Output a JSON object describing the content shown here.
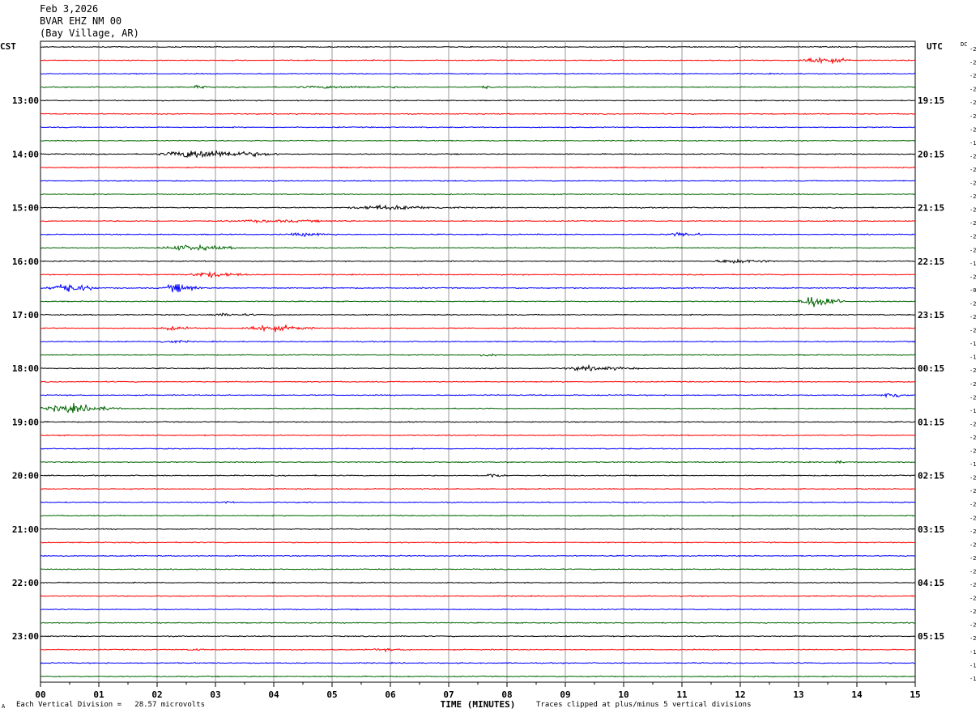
{
  "header": {
    "date": "Feb 3,2026",
    "station": "BVAR EHZ NM 00",
    "location": "(Bay Village, AR)"
  },
  "left_tz": "CST",
  "right_tz": "UTC",
  "dc_label": "DC",
  "footer": {
    "scale": "Each Vertical Division =   28.57 microvolts",
    "scale_mark": "A",
    "clip_note": "Traces clipped at plus/minus 5 vertical divisions"
  },
  "colors": {
    "trace_cycle": [
      "#000000",
      "#ff0000",
      "#0000ff",
      "#006400"
    ],
    "grid": "#999999"
  },
  "chart_data": {
    "type": "line",
    "xlabel": "TIME (MINUTES)",
    "xticks": [
      "00",
      "01",
      "02",
      "03",
      "04",
      "05",
      "06",
      "07",
      "08",
      "09",
      "10",
      "11",
      "12",
      "13",
      "14",
      "15"
    ],
    "xlim": [
      0,
      15
    ],
    "left_hour_labels": [
      "13:00",
      "14:00",
      "15:00",
      "16:00",
      "17:00",
      "18:00",
      "19:00",
      "20:00",
      "21:00",
      "22:00",
      "23:00"
    ],
    "right_hour_labels": [
      "19:15",
      "20:15",
      "21:15",
      "22:15",
      "23:15",
      "00:15",
      "01:15",
      "02:15",
      "03:15",
      "04:15",
      "05:15"
    ],
    "traces_per_hour": 4,
    "trace_count": 48,
    "dc_offsets": [
      "-2",
      "-2",
      "-2",
      "-2",
      "-2",
      "-2",
      "-2",
      "-1",
      "-2",
      "-2",
      "-2",
      "-2",
      "-2",
      "-2",
      "-2",
      "-2",
      "-1",
      "-2",
      "-0",
      "-2",
      "-2",
      "-2",
      "-1",
      "-1",
      "-2",
      "-2",
      "-2",
      "-1",
      "-2",
      "-2",
      "-2",
      "-1",
      "-2",
      "-2",
      "-2",
      "-2",
      "-2",
      "-2",
      "-2",
      "-2",
      "-2",
      "-2",
      "-2",
      "-2",
      "-2",
      "-1",
      "-1",
      "-1"
    ],
    "amplitude": [
      1,
      1,
      1,
      1,
      1,
      1,
      1,
      1,
      1,
      1,
      1,
      1,
      1,
      1,
      1,
      1,
      1,
      1,
      1,
      1,
      1,
      1,
      1,
      1,
      1,
      1,
      1,
      1,
      1,
      1,
      1,
      1,
      1,
      1,
      1,
      1,
      1,
      1,
      1,
      1,
      1,
      1,
      1,
      1,
      1,
      1,
      1,
      1
    ],
    "events": [
      {
        "trace": 1,
        "t0": 13.0,
        "t1": 13.9,
        "amp": 7
      },
      {
        "trace": 3,
        "t0": 2.6,
        "t1": 2.9,
        "amp": 3
      },
      {
        "trace": 3,
        "t0": 4.2,
        "t1": 6.5,
        "amp": 2
      },
      {
        "trace": 3,
        "t0": 7.5,
        "t1": 7.8,
        "amp": 3
      },
      {
        "trace": 8,
        "t0": 2.0,
        "t1": 4.1,
        "amp": 9
      },
      {
        "trace": 12,
        "t0": 5.2,
        "t1": 7.2,
        "amp": 4
      },
      {
        "trace": 13,
        "t0": 3.0,
        "t1": 5.5,
        "amp": 2
      },
      {
        "trace": 14,
        "t0": 4.2,
        "t1": 5.1,
        "amp": 3
      },
      {
        "trace": 14,
        "t0": 10.7,
        "t1": 11.4,
        "amp": 4
      },
      {
        "trace": 15,
        "t0": 2.0,
        "t1": 3.5,
        "amp": 5
      },
      {
        "trace": 16,
        "t0": 11.5,
        "t1": 12.6,
        "amp": 4
      },
      {
        "trace": 17,
        "t0": 2.5,
        "t1": 3.6,
        "amp": 5
      },
      {
        "trace": 18,
        "t0": 0.1,
        "t1": 1.0,
        "amp": 9
      },
      {
        "trace": 18,
        "t0": 2.1,
        "t1": 2.8,
        "amp": 9
      },
      {
        "trace": 19,
        "t0": 13.0,
        "t1": 13.8,
        "amp": 13
      },
      {
        "trace": 20,
        "t0": 2.8,
        "t1": 3.8,
        "amp": 2
      },
      {
        "trace": 21,
        "t0": 2.0,
        "t1": 2.7,
        "amp": 3
      },
      {
        "trace": 21,
        "t0": 3.4,
        "t1": 4.7,
        "amp": 6
      },
      {
        "trace": 22,
        "t0": 2.0,
        "t1": 2.6,
        "amp": 3
      },
      {
        "trace": 23,
        "t0": 7.5,
        "t1": 8.0,
        "amp": 2
      },
      {
        "trace": 24,
        "t0": 8.9,
        "t1": 10.3,
        "amp": 4
      },
      {
        "trace": 26,
        "t0": 14.4,
        "t1": 14.9,
        "amp": 7
      },
      {
        "trace": 27,
        "t0": 0.0,
        "t1": 1.4,
        "amp": 8
      },
      {
        "trace": 31,
        "t0": 13.6,
        "t1": 13.8,
        "amp": 3
      },
      {
        "trace": 32,
        "t0": 7.6,
        "t1": 8.0,
        "amp": 4
      },
      {
        "trace": 34,
        "t0": 3.1,
        "t1": 3.4,
        "amp": 2
      },
      {
        "trace": 45,
        "t0": 2.5,
        "t1": 2.9,
        "amp": 2
      },
      {
        "trace": 45,
        "t0": 5.6,
        "t1": 6.4,
        "amp": 2
      }
    ]
  }
}
